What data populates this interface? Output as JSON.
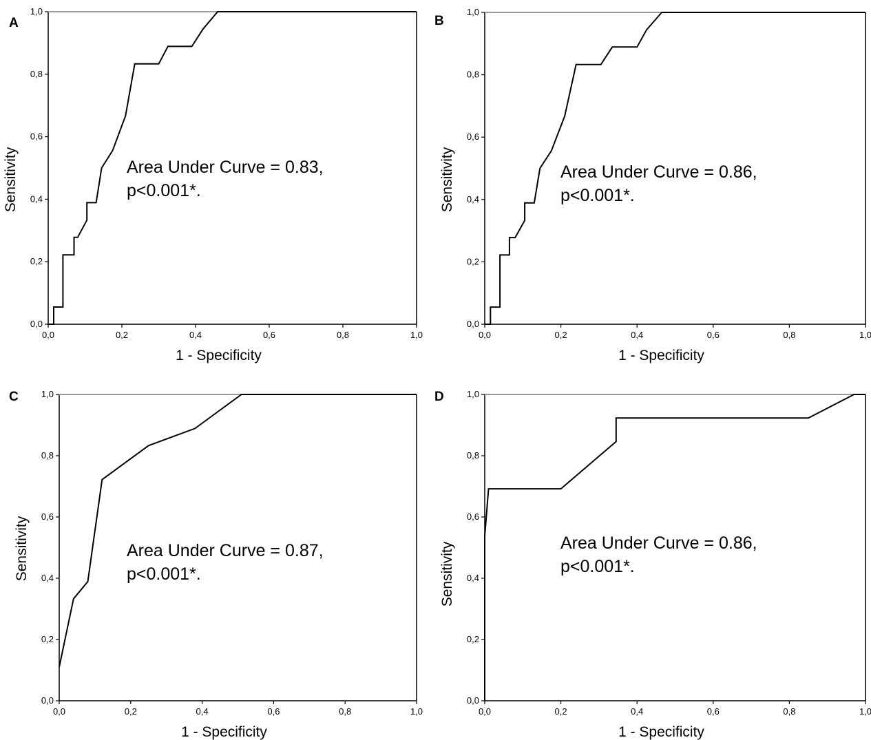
{
  "chart_data": [
    {
      "type": "line",
      "panel": "A",
      "xlabel": "1 - Specificity",
      "ylabel": "Sensitivity",
      "xlim": [
        0,
        1
      ],
      "ylim": [
        0,
        1
      ],
      "xticks": [
        "0,0",
        "0,2",
        "0,4",
        "0,6",
        "0,8",
        "1,0"
      ],
      "yticks": [
        "0,0",
        "0,2",
        "0,4",
        "0,6",
        "0,8",
        "1,0"
      ],
      "annotation": [
        "Area Under Curve = 0.83,",
        "p<0.001*."
      ],
      "x": [
        0.0,
        0.015,
        0.015,
        0.04,
        0.04,
        0.07,
        0.07,
        0.08,
        0.105,
        0.105,
        0.13,
        0.145,
        0.175,
        0.21,
        0.235,
        0.3,
        0.325,
        0.39,
        0.42,
        0.46,
        1.0
      ],
      "y": [
        0.0,
        0.0,
        0.055,
        0.055,
        0.222,
        0.222,
        0.278,
        0.278,
        0.333,
        0.389,
        0.389,
        0.5,
        0.556,
        0.667,
        0.833,
        0.833,
        0.889,
        0.889,
        0.944,
        1.0,
        1.0
      ]
    },
    {
      "type": "line",
      "panel": "B",
      "xlabel": "1 - Specificity",
      "ylabel": "Sensitivity",
      "xlim": [
        0,
        1
      ],
      "ylim": [
        0,
        1
      ],
      "xticks": [
        "0,0",
        "0,2",
        "0,4",
        "0,6",
        "0,8",
        "1,0"
      ],
      "yticks": [
        "0,0",
        "0,2",
        "0,4",
        "0,6",
        "0,8",
        "1,0"
      ],
      "annotation": [
        "Area Under Curve = 0.86,",
        "p<0.001*."
      ],
      "x": [
        0.0,
        0.015,
        0.015,
        0.04,
        0.04,
        0.065,
        0.065,
        0.08,
        0.105,
        0.105,
        0.13,
        0.145,
        0.175,
        0.21,
        0.24,
        0.305,
        0.335,
        0.4,
        0.425,
        0.465,
        1.0
      ],
      "y": [
        0.0,
        0.0,
        0.055,
        0.055,
        0.222,
        0.222,
        0.278,
        0.278,
        0.333,
        0.389,
        0.389,
        0.5,
        0.556,
        0.667,
        0.833,
        0.833,
        0.889,
        0.889,
        0.944,
        1.0,
        1.0
      ]
    },
    {
      "type": "line",
      "panel": "C",
      "xlabel": "1 - Specificity",
      "ylabel": "Sensitivity",
      "xlim": [
        0,
        1
      ],
      "ylim": [
        0,
        1
      ],
      "xticks": [
        "0,0",
        "0,2",
        "0,4",
        "0,6",
        "0,8",
        "1,0"
      ],
      "yticks": [
        "0,0",
        "0,2",
        "0,4",
        "0,6",
        "0,8",
        "1,0"
      ],
      "annotation": [
        "Area Under Curve = 0.87,",
        "p<0.001*."
      ],
      "x": [
        0.0,
        0.04,
        0.08,
        0.12,
        0.25,
        0.38,
        0.51,
        1.0
      ],
      "y": [
        0.11,
        0.333,
        0.389,
        0.722,
        0.833,
        0.889,
        1.0,
        1.0
      ]
    },
    {
      "type": "line",
      "panel": "D",
      "xlabel": "1 - Specificity",
      "ylabel": "Sensitivity",
      "xlim": [
        0,
        1
      ],
      "ylim": [
        0,
        1
      ],
      "xticks": [
        "0,0",
        "0,2",
        "0,4",
        "0,6",
        "0,8",
        "1,0"
      ],
      "yticks": [
        "0,0",
        "0,2",
        "0,4",
        "0,6",
        "0,8",
        "1,0"
      ],
      "annotation": [
        "Area Under Curve = 0.86,",
        "p<0.001*."
      ],
      "x": [
        0.0,
        0.0,
        0.005,
        0.01,
        0.2,
        0.345,
        0.345,
        0.85,
        0.97,
        1.0
      ],
      "y": [
        0.0,
        0.538,
        0.615,
        0.692,
        0.692,
        0.846,
        0.923,
        0.923,
        1.0,
        1.0
      ]
    }
  ]
}
